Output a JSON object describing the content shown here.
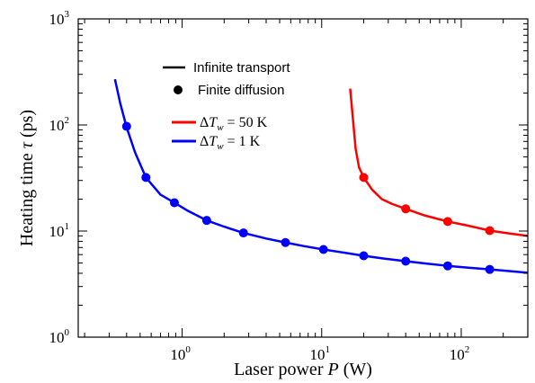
{
  "chart_data": {
    "type": "line",
    "xlabel_prefix": "Laser power ",
    "xlabel_var": "P",
    "xlabel_suffix": " (W)",
    "ylabel_prefix": "Heating time ",
    "ylabel_var": "τ",
    "ylabel_suffix": " (ps)",
    "x_scale": "log",
    "y_scale": "log",
    "xlim": [
      0.18,
      300
    ],
    "ylim": [
      1,
      1000
    ],
    "x_ticks": [
      {
        "value": 1,
        "base": "10",
        "exp": "0"
      },
      {
        "value": 10,
        "base": "10",
        "exp": "1"
      },
      {
        "value": 100,
        "base": "10",
        "exp": "2"
      }
    ],
    "y_ticks": [
      {
        "value": 1,
        "base": "10",
        "exp": "0"
      },
      {
        "value": 10,
        "base": "10",
        "exp": "1"
      },
      {
        "value": 100,
        "base": "10",
        "exp": "2"
      },
      {
        "value": 1000,
        "base": "10",
        "exp": "3"
      }
    ],
    "grid": false,
    "legend_position": "top-center",
    "legend_style": [
      {
        "label": "Infinite transport",
        "marker": "line"
      },
      {
        "label": "Finite diffusion",
        "marker": "dot"
      }
    ],
    "series": [
      {
        "name": "ΔT_w = 50 K",
        "legend_delta": "Δ",
        "legend_var": "T",
        "legend_sub": "w",
        "legend_value": " = 50 K",
        "color": "#ff0000",
        "curve_x": [
          16,
          17.5,
          18.5,
          20,
          23,
          27,
          32,
          40,
          55,
          80,
          110,
          160,
          220,
          300
        ],
        "curve_y": [
          220,
          60,
          40,
          32,
          24.5,
          20,
          18,
          16.2,
          14,
          12.3,
          11.3,
          10.1,
          9.5,
          9
        ],
        "points_x": [
          20,
          40,
          80,
          160
        ],
        "points_y": [
          32,
          16.2,
          12.3,
          10.1
        ]
      },
      {
        "name": "ΔT_w = 1 K",
        "legend_delta": "Δ",
        "legend_var": "T",
        "legend_sub": "w",
        "legend_value": " = 1 K",
        "color": "#0000ff",
        "curve_x": [
          0.33,
          0.36,
          0.4,
          0.46,
          0.55,
          0.7,
          0.88,
          1.1,
          1.5,
          2,
          2.75,
          4,
          5.5,
          7.5,
          10.3,
          14,
          20,
          28,
          40,
          55,
          80,
          115,
          160,
          220,
          300
        ],
        "curve_y": [
          270,
          160,
          95,
          55,
          32,
          22,
          18.5,
          15.5,
          12.6,
          11,
          9.6,
          8.5,
          7.8,
          7.2,
          6.7,
          6.3,
          5.85,
          5.5,
          5.2,
          4.95,
          4.7,
          4.5,
          4.35,
          4.2,
          4.05
        ],
        "points_x": [
          0.4,
          0.55,
          0.88,
          1.5,
          2.75,
          5.5,
          10.3,
          20,
          40,
          80,
          160
        ],
        "points_y": [
          97,
          32,
          18.5,
          12.6,
          9.6,
          7.8,
          6.7,
          5.85,
          5.2,
          4.7,
          4.35
        ]
      }
    ]
  }
}
